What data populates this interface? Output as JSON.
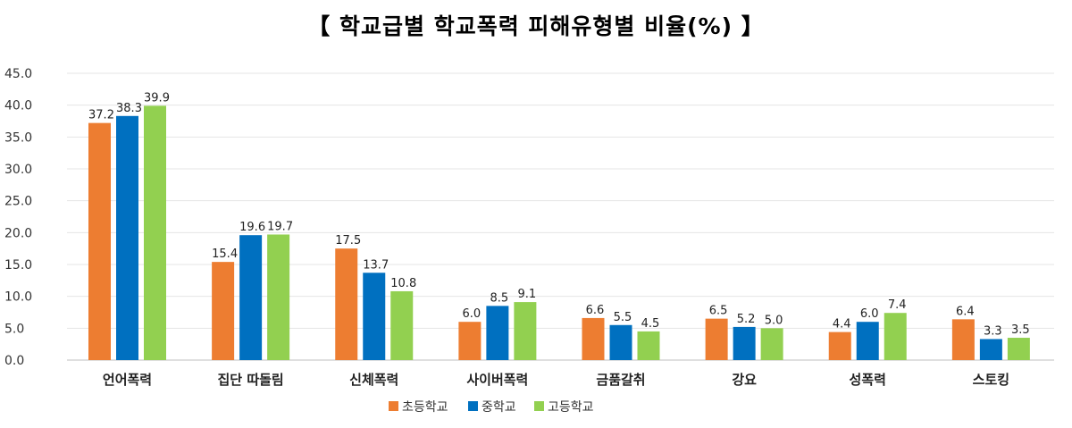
{
  "chart_data": {
    "type": "bar",
    "title": "【 학교급별 학교폭력 피해유형별 비율(%) 】",
    "xlabel": "",
    "ylabel": "",
    "ylim": [
      0,
      45
    ],
    "yticks": [
      "0.0",
      "5.0",
      "10.0",
      "15.0",
      "20.0",
      "25.0",
      "30.0",
      "35.0",
      "40.0",
      "45.0"
    ],
    "grid": true,
    "legend_position": "bottom",
    "categories": [
      "언어폭력",
      "집단 따돌림",
      "신체폭력",
      "사이버폭력",
      "금품갈취",
      "강요",
      "성폭력",
      "스토킹"
    ],
    "series": [
      {
        "name": "초등학교",
        "color": "#ED7D31",
        "values": [
          37.2,
          15.4,
          17.5,
          6.0,
          6.6,
          6.5,
          4.4,
          6.4
        ]
      },
      {
        "name": "중학교",
        "color": "#0070C0",
        "values": [
          38.3,
          19.6,
          13.7,
          8.5,
          5.5,
          5.2,
          6.0,
          3.3
        ]
      },
      {
        "name": "고등학교",
        "color": "#92D050",
        "values": [
          39.9,
          19.7,
          10.8,
          9.1,
          4.5,
          5.0,
          7.4,
          3.5
        ]
      }
    ]
  }
}
